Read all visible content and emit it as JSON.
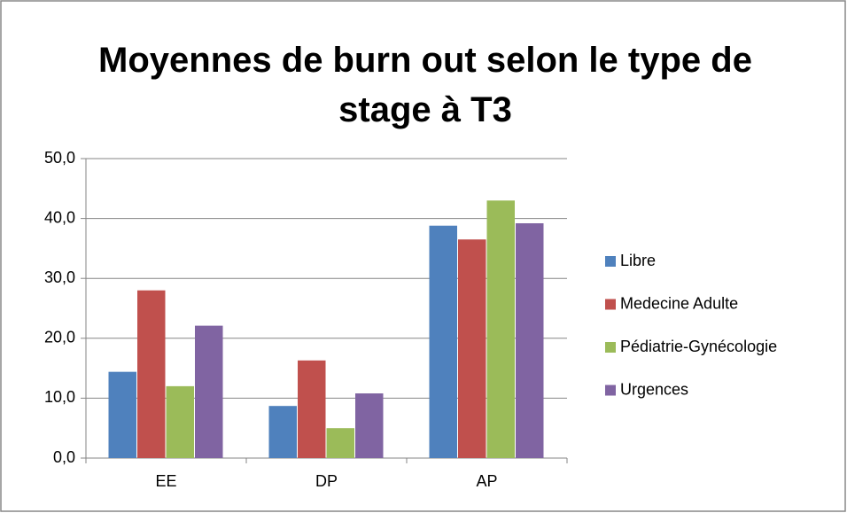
{
  "chart_data": {
    "type": "bar",
    "title": "Moyennes de burn out selon le type de stage à T3",
    "categories": [
      "EE",
      "DP",
      "AP"
    ],
    "series": [
      {
        "name": "Libre",
        "color": "#4f81bd",
        "values": [
          14.4,
          8.7,
          38.8
        ]
      },
      {
        "name": "Medecine Adulte",
        "color": "#c0504d",
        "values": [
          28.0,
          16.3,
          36.5
        ]
      },
      {
        "name": "Pédiatrie-Gynécologie",
        "color": "#9bbb59",
        "values": [
          12.0,
          5.0,
          43.0
        ]
      },
      {
        "name": "Urgences",
        "color": "#8064a2",
        "values": [
          22.1,
          10.8,
          39.2
        ]
      }
    ],
    "ylim": [
      0,
      50
    ],
    "yticks": [
      {
        "value": 0,
        "label": "0,0"
      },
      {
        "value": 10,
        "label": "10,0"
      },
      {
        "value": 20,
        "label": "20,0"
      },
      {
        "value": 30,
        "label": "30,0"
      },
      {
        "value": 40,
        "label": "40,0"
      },
      {
        "value": 50,
        "label": "50,0"
      }
    ],
    "grid": true,
    "legend": "right"
  }
}
